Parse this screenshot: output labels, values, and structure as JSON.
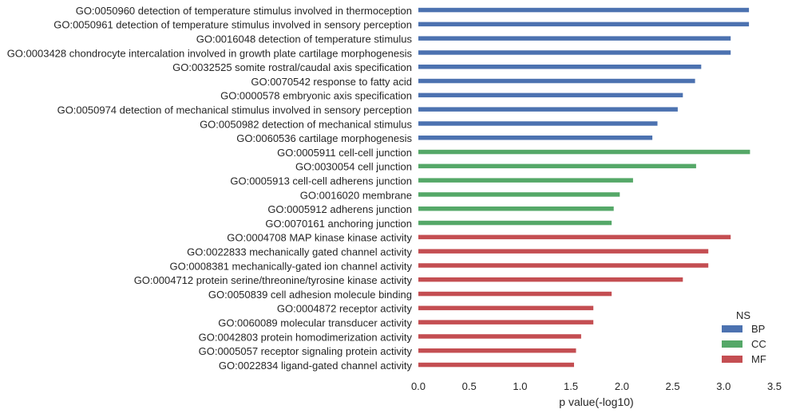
{
  "chart_data": {
    "type": "bar",
    "orientation": "horizontal",
    "xlabel": "p value(-log10)",
    "ylabel": "",
    "xlim": [
      0,
      3.5
    ],
    "xticks": [
      "0.0",
      "0.5",
      "1.0",
      "1.5",
      "2.0",
      "2.5",
      "3.0",
      "3.5"
    ],
    "grid": false,
    "legend": {
      "title": "NS",
      "placement": "bottom-right",
      "entries": [
        {
          "name": "BP",
          "color": "#4c72b0"
        },
        {
          "name": "CC",
          "color": "#55a868"
        },
        {
          "name": "MF",
          "color": "#c44e52"
        }
      ]
    },
    "categories": [
      {
        "label": "GO:0050960 detection of temperature stimulus involved in thermoception",
        "ns": "BP",
        "value": 3.25
      },
      {
        "label": "GO:0050961 detection of temperature stimulus involved in sensory perception",
        "ns": "BP",
        "value": 3.25
      },
      {
        "label": "GO:0016048 detection of temperature stimulus",
        "ns": "BP",
        "value": 3.07
      },
      {
        "label": "GO:0003428 chondrocyte intercalation involved in growth plate cartilage morphogenesis",
        "ns": "BP",
        "value": 3.07
      },
      {
        "label": "GO:0032525 somite rostral/caudal axis specification",
        "ns": "BP",
        "value": 2.78
      },
      {
        "label": "GO:0070542 response to fatty acid",
        "ns": "BP",
        "value": 2.72
      },
      {
        "label": "GO:0000578 embryonic axis specification",
        "ns": "BP",
        "value": 2.6
      },
      {
        "label": "GO:0050974 detection of mechanical stimulus involved in sensory perception",
        "ns": "BP",
        "value": 2.55
      },
      {
        "label": "GO:0050982 detection of mechanical stimulus",
        "ns": "BP",
        "value": 2.35
      },
      {
        "label": "GO:0060536 cartilage morphogenesis",
        "ns": "BP",
        "value": 2.3
      },
      {
        "label": "GO:0005911 cell-cell junction",
        "ns": "CC",
        "value": 3.26
      },
      {
        "label": "GO:0030054 cell junction",
        "ns": "CC",
        "value": 2.73
      },
      {
        "label": "GO:0005913 cell-cell adherens junction",
        "ns": "CC",
        "value": 2.11
      },
      {
        "label": "GO:0016020 membrane",
        "ns": "CC",
        "value": 1.98
      },
      {
        "label": "GO:0005912 adherens junction",
        "ns": "CC",
        "value": 1.92
      },
      {
        "label": "GO:0070161 anchoring junction",
        "ns": "CC",
        "value": 1.9
      },
      {
        "label": "GO:0004708 MAP kinase kinase activity",
        "ns": "MF",
        "value": 3.07
      },
      {
        "label": "GO:0022833 mechanically gated channel activity",
        "ns": "MF",
        "value": 2.85
      },
      {
        "label": "GO:0008381 mechanically-gated ion channel activity",
        "ns": "MF",
        "value": 2.85
      },
      {
        "label": "GO:0004712 protein serine/threonine/tyrosine kinase activity",
        "ns": "MF",
        "value": 2.6
      },
      {
        "label": "GO:0050839 cell adhesion molecule binding",
        "ns": "MF",
        "value": 1.9
      },
      {
        "label": "GO:0004872 receptor activity",
        "ns": "MF",
        "value": 1.72
      },
      {
        "label": "GO:0060089 molecular transducer activity",
        "ns": "MF",
        "value": 1.72
      },
      {
        "label": "GO:0042803 protein homodimerization activity",
        "ns": "MF",
        "value": 1.6
      },
      {
        "label": "GO:0005057 receptor signaling protein activity",
        "ns": "MF",
        "value": 1.55
      },
      {
        "label": "GO:0022834 ligand-gated channel activity",
        "ns": "MF",
        "value": 1.53
      }
    ]
  }
}
